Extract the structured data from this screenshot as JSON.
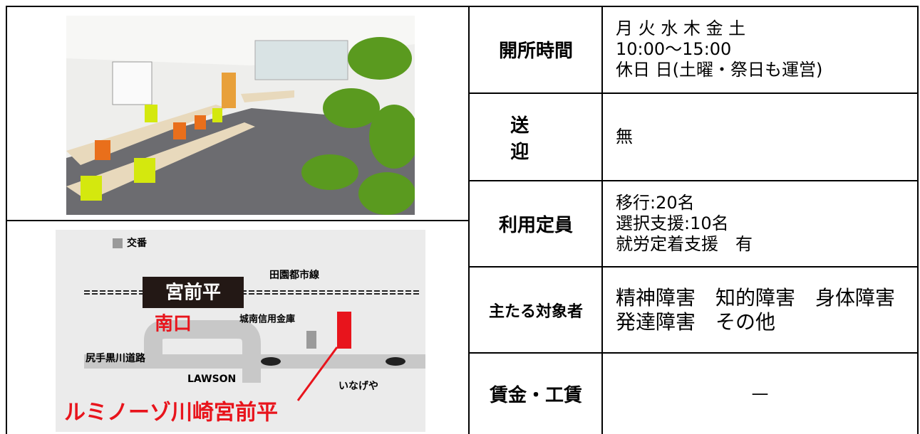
{
  "map": {
    "labels": [
      "交番",
      "田園都市線",
      "宮前平",
      "南口",
      "城南信用金庫",
      "尻手黒川道路",
      "LAWSON",
      "いなげや"
    ],
    "title": "ルミノーゾ川崎宮前平"
  },
  "table": {
    "rows": [
      {
        "label": "開所時間",
        "lines": [
          "月 火 水 木 金 土",
          "10:00〜15:00",
          "休日 日(土曜・祭日も運営)"
        ]
      },
      {
        "label": "送迎",
        "lines": [
          "無"
        ]
      },
      {
        "label": "利用定員",
        "lines": [
          "移行:20名",
          "選択支援:10名",
          "就労定着支援　有"
        ]
      },
      {
        "label": "主たる対象者",
        "lines": [
          "精神障害　知的障害　身体障害",
          "発達障害　その他"
        ]
      },
      {
        "label": "賃金・工賃",
        "lines": [
          "—"
        ]
      }
    ]
  }
}
